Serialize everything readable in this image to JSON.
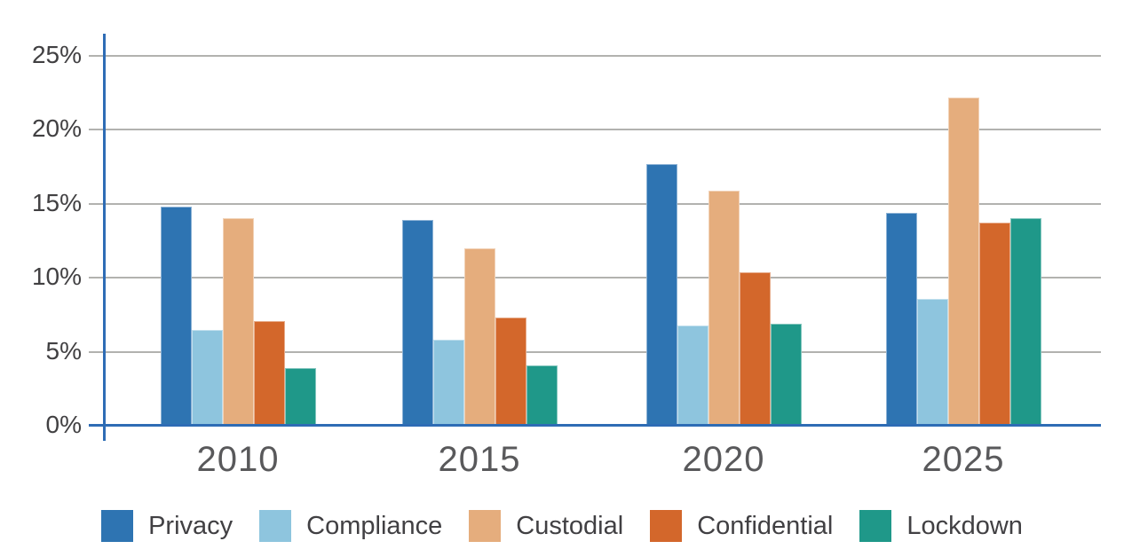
{
  "chart_data": {
    "type": "bar",
    "title": "",
    "xlabel": "",
    "ylabel": "",
    "categories": [
      "2010",
      "2015",
      "2020",
      "2025"
    ],
    "series": [
      {
        "name": "Privacy",
        "color": "#2e74b2",
        "values": [
          14.8,
          13.9,
          17.7,
          14.4
        ]
      },
      {
        "name": "Compliance",
        "color": "#8ec5de",
        "values": [
          6.5,
          5.8,
          6.8,
          8.6
        ]
      },
      {
        "name": "Custodial",
        "color": "#e5ad7d",
        "values": [
          14.0,
          12.0,
          15.9,
          22.2
        ]
      },
      {
        "name": "Confidential",
        "color": "#d3672b",
        "values": [
          7.1,
          7.3,
          10.4,
          13.7
        ]
      },
      {
        "name": "Lockdown",
        "color": "#1f9889",
        "values": [
          3.9,
          4.1,
          6.9,
          14.0
        ]
      }
    ],
    "ylim": [
      0,
      25
    ],
    "yticks": [
      0,
      5,
      10,
      15,
      20,
      25
    ],
    "ytick_labels": [
      "0%",
      "5%",
      "10%",
      "15%",
      "20%",
      "25%"
    ],
    "grid": true,
    "legend_position": "bottom",
    "colors": {
      "axis_line": "#2e6cb5",
      "gridline": "#b2b2af",
      "ytick_text": "#414042",
      "xtick_text": "#59595b",
      "legend_text": "#414043",
      "background": "#ffffff"
    }
  }
}
